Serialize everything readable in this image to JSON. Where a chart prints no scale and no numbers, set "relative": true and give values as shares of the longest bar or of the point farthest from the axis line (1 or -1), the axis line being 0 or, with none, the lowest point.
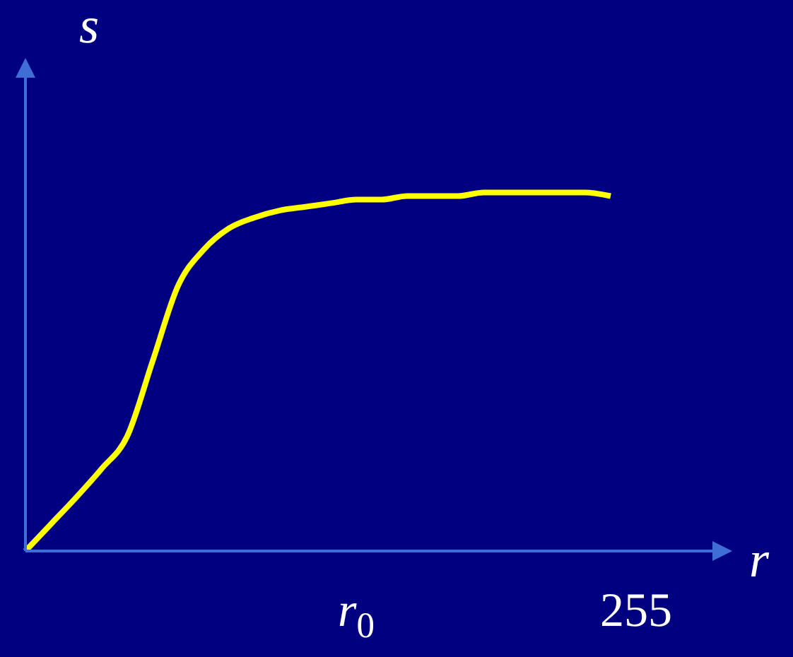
{
  "chart_data": {
    "type": "line",
    "relative": true,
    "xlabel": "r",
    "ylabel": "s",
    "marker": "none",
    "categories": [
      null,
      null,
      null,
      null,
      null,
      null,
      null,
      null,
      null,
      null,
      null,
      null,
      null,
      "r$_{0}$",
      null,
      null,
      null,
      null,
      null,
      null,
      null,
      null,
      null,
      null,
      "255",
      null,
      null,
      null
    ],
    "series": [
      {
        "color": "#ffff00",
        "values": [
          0,
          0.075,
          0.15,
          0.23,
          0.32,
          0.53,
          0.74,
          0.84,
          0.9,
          0.93,
          0.95,
          0.96,
          0.97,
          0.98,
          0.98,
          0.99,
          0.99,
          0.99,
          1,
          1,
          1,
          1,
          1,
          0.99,
          null,
          null,
          null,
          null
        ]
      }
    ]
  }
}
